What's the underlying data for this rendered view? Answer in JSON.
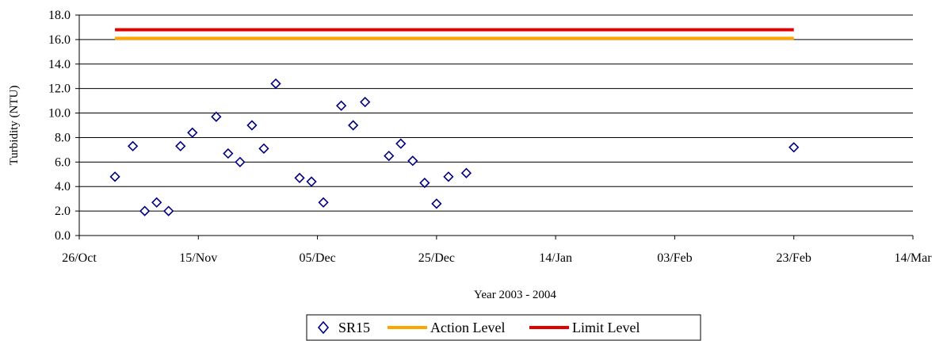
{
  "chart_data": {
    "type": "scatter",
    "xlabel": "Year 2003 - 2004",
    "ylabel": "Turbidity (NTU)",
    "x_axis": {
      "type": "date",
      "min": "2003-10-26",
      "max": "2004-03-14",
      "ticks": [
        "2003-10-26",
        "2003-11-15",
        "2003-12-05",
        "2003-12-25",
        "2004-01-14",
        "2004-02-03",
        "2004-02-23",
        "2004-03-14"
      ],
      "tick_labels": [
        "26/Oct",
        "15/Nov",
        "05/Dec",
        "25/Dec",
        "14/Jan",
        "03/Feb",
        "23/Feb",
        "14/Mar"
      ]
    },
    "y_axis": {
      "min": 0,
      "max": 18,
      "ticks": [
        0,
        2,
        4,
        6,
        8,
        10,
        12,
        14,
        16,
        18
      ],
      "tick_labels": [
        "0.0",
        "2.0",
        "4.0",
        "6.0",
        "8.0",
        "10.0",
        "12.0",
        "14.0",
        "16.0",
        "18.0"
      ]
    },
    "grid": "horizontal",
    "legend_position": "bottom",
    "series": [
      {
        "name": "SR15",
        "kind": "scatter",
        "marker": "diamond",
        "color": "#000080",
        "points": [
          {
            "x": "2003-11-01",
            "y": 4.8
          },
          {
            "x": "2003-11-04",
            "y": 7.3
          },
          {
            "x": "2003-11-06",
            "y": 2.0
          },
          {
            "x": "2003-11-08",
            "y": 2.7
          },
          {
            "x": "2003-11-10",
            "y": 2.0
          },
          {
            "x": "2003-11-12",
            "y": 7.3
          },
          {
            "x": "2003-11-14",
            "y": 8.4
          },
          {
            "x": "2003-11-18",
            "y": 9.7
          },
          {
            "x": "2003-11-20",
            "y": 6.7
          },
          {
            "x": "2003-11-22",
            "y": 6.0
          },
          {
            "x": "2003-11-24",
            "y": 9.0
          },
          {
            "x": "2003-11-26",
            "y": 7.1
          },
          {
            "x": "2003-11-28",
            "y": 12.4
          },
          {
            "x": "2003-12-02",
            "y": 4.7
          },
          {
            "x": "2003-12-04",
            "y": 4.4
          },
          {
            "x": "2003-12-06",
            "y": 2.7
          },
          {
            "x": "2003-12-09",
            "y": 10.6
          },
          {
            "x": "2003-12-11",
            "y": 9.0
          },
          {
            "x": "2003-12-13",
            "y": 10.9
          },
          {
            "x": "2003-12-17",
            "y": 6.5
          },
          {
            "x": "2003-12-19",
            "y": 7.5
          },
          {
            "x": "2003-12-21",
            "y": 6.1
          },
          {
            "x": "2003-12-23",
            "y": 4.3
          },
          {
            "x": "2003-12-25",
            "y": 2.6
          },
          {
            "x": "2003-12-27",
            "y": 4.8
          },
          {
            "x": "2003-12-30",
            "y": 5.1
          },
          {
            "x": "2004-02-23",
            "y": 7.2
          }
        ]
      },
      {
        "name": "Action Level",
        "kind": "line",
        "color": "#FFA500",
        "points": [
          {
            "x": "2003-11-01",
            "y": 16.1
          },
          {
            "x": "2004-02-23",
            "y": 16.1
          }
        ]
      },
      {
        "name": "Limit Level",
        "kind": "line",
        "color": "#E00000",
        "points": [
          {
            "x": "2003-11-01",
            "y": 16.8
          },
          {
            "x": "2004-02-23",
            "y": 16.8
          }
        ]
      }
    ]
  }
}
